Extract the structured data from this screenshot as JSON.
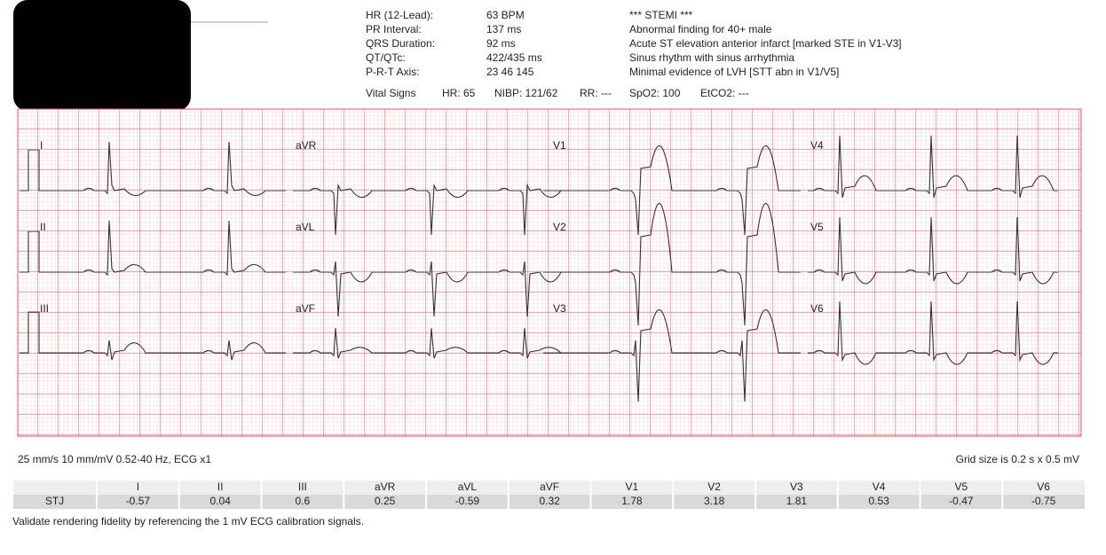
{
  "header": {
    "measurements": [
      {
        "label": "HR (12-Lead):",
        "value": "63 BPM"
      },
      {
        "label": "PR Interval:",
        "value": "137 ms"
      },
      {
        "label": "QRS Duration:",
        "value": "92 ms"
      },
      {
        "label": "QT/QTc:",
        "value": "422/435 ms"
      },
      {
        "label": "P-R-T Axis:",
        "value": "23 46 145"
      }
    ],
    "findings": [
      "*** STEMI ***",
      "Abnormal finding for 40+ male",
      "Acute ST elevation anterior infarct [marked STE in V1-V3]",
      "Sinus rhythm with sinus arrhythmia",
      "Minimal evidence of LVH [STT abn in V1/V5]"
    ],
    "vitals": {
      "label": "Vital Signs",
      "items": [
        "HR: 65",
        "NIBP: 121/62",
        "RR: ---",
        "SpO2: 100",
        "EtCO2: ---"
      ]
    }
  },
  "leads": [
    "I",
    "II",
    "III",
    "aVR",
    "aVL",
    "aVF",
    "V1",
    "V2",
    "V3",
    "V4",
    "V5",
    "V6"
  ],
  "strip_settings": "25 mm/s 10 mm/mV 0.52-40 Hz, ECG x1",
  "grid_note": "Grid size is 0.2 s x 0.5 mV",
  "table": {
    "row_label": "STJ",
    "values": [
      -0.57,
      0.04,
      0.6,
      0.25,
      -0.59,
      0.32,
      1.78,
      3.18,
      1.81,
      0.53,
      -0.47,
      -0.75
    ]
  },
  "note": "Validate rendering fidelity by referencing the 1 mV ECG calibration signals."
}
